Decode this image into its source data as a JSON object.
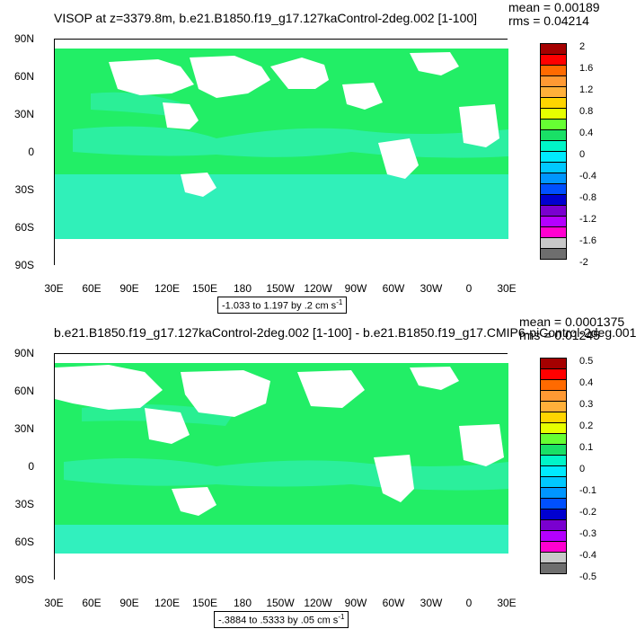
{
  "top": {
    "title": "VISOP at z=3379.8m, b.e21.B1850.f19_g17.127kaControl-2deg.002 [1-100]",
    "mean": "mean = 0.00189",
    "rms": "rms = 0.04214",
    "range_text": "-1.033 to 1.197 by .2 cm s",
    "range_exp": "-1",
    "legend_labels": [
      "2",
      "1.6",
      "1.2",
      "0.8",
      "0.4",
      "0",
      "-0.4",
      "-0.8",
      "-1.2",
      "-1.6",
      "-2"
    ]
  },
  "bottom": {
    "title": "b.e21.B1850.f19_g17.127kaControl-2deg.002 [1-100] - b.e21.B1850.f19_g17.CMIP6-piControl-2deg.001",
    "mean": "mean = 0.0001375",
    "rms": "rms = 0.01245",
    "range_text": "-.3884 to .5333 by .05 cm s",
    "range_exp": "-1",
    "legend_labels": [
      "0.5",
      "0.4",
      "0.3",
      "0.2",
      "0.1",
      "0",
      "-0.1",
      "-0.2",
      "-0.3",
      "-0.4",
      "-0.5"
    ]
  },
  "axes": {
    "lat_labels": [
      "90N",
      "60N",
      "30N",
      "0",
      "30S",
      "60S",
      "90S"
    ],
    "lon_labels": [
      "30E",
      "60E",
      "90E",
      "120E",
      "150E",
      "180",
      "150W",
      "120W",
      "90W",
      "60W",
      "30W",
      "0",
      "30E"
    ]
  },
  "legend_colors": [
    "#a50000",
    "#ff0000",
    "#ff6a00",
    "#ff9933",
    "#ffb03a",
    "#ffd500",
    "#e6ff00",
    "#66ff33",
    "#19e066",
    "#00f5c8",
    "#00eaff",
    "#00c8ff",
    "#0096ff",
    "#0050ff",
    "#0000d0",
    "#7a00d0",
    "#b400ff",
    "#ff00d0",
    "#c8c8c8",
    "#6e6e6e"
  ],
  "fill_colors": {
    "green": "#22ee66",
    "cyan": "#33f0c8"
  }
}
